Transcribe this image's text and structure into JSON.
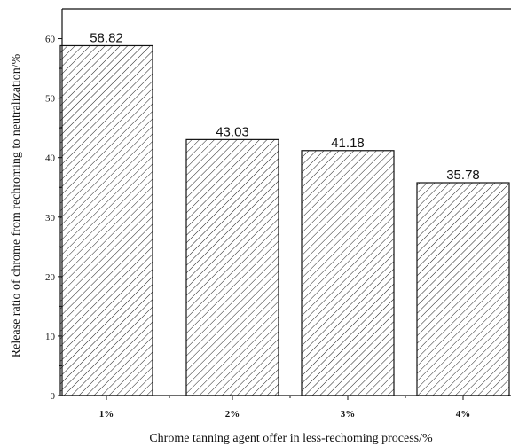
{
  "chart_data": {
    "type": "bar",
    "title": "",
    "xlabel": "Chrome tanning agent offer in less-rechoming process/%",
    "ylabel": "Release ratio of chrome from rechroming to neutralization/%",
    "categories": [
      "1%",
      "2%",
      "3%",
      "4%"
    ],
    "values": [
      58.82,
      43.03,
      41.18,
      35.78
    ],
    "data_labels": [
      "58.82",
      "43.03",
      "41.18",
      "35.78"
    ],
    "ylim": [
      0,
      65
    ],
    "yticks": [
      0,
      10,
      20,
      30,
      40,
      50,
      60
    ],
    "bar_fill": "hatched",
    "grid": false,
    "legend": "none"
  }
}
